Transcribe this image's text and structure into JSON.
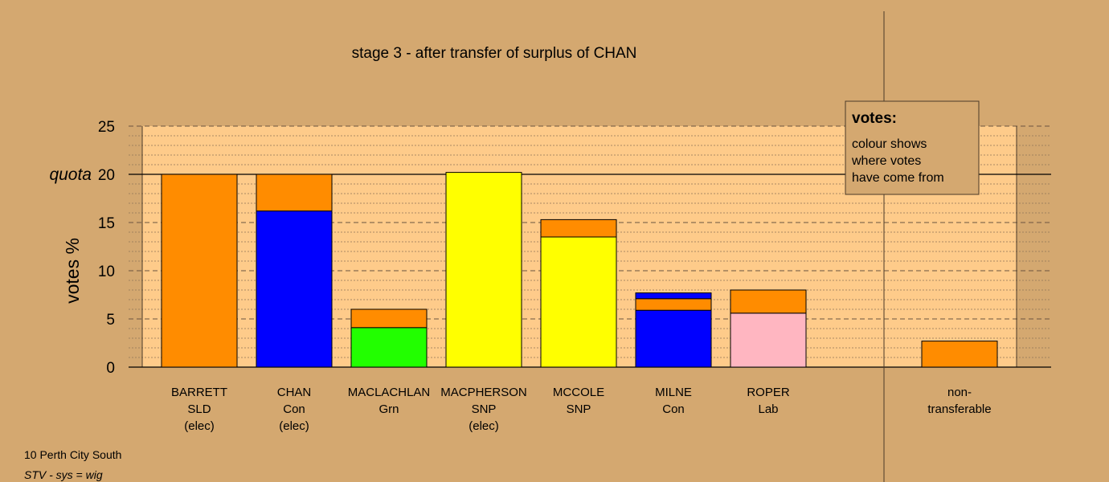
{
  "chart_data": {
    "type": "bar",
    "stacked": true,
    "title": "stage 3 - after transfer of surplus of CHAN",
    "ylabel": "votes %",
    "ylim": [
      0,
      25
    ],
    "yticks": [
      0,
      5,
      10,
      15,
      20,
      25
    ],
    "quota": 20,
    "quota_label": "quota",
    "grid": "dashed horizontal lines every 1%",
    "categories": [
      {
        "name": "BARRETT",
        "party": "SLD",
        "status": "(elec)"
      },
      {
        "name": "CHAN",
        "party": "Con",
        "status": "(elec)"
      },
      {
        "name": "MACLACHLAN",
        "party": "Grn",
        "status": ""
      },
      {
        "name": "MACPHERSON",
        "party": "SNP",
        "status": "(elec)"
      },
      {
        "name": "MCCOLE",
        "party": "SNP",
        "status": ""
      },
      {
        "name": "MILNE",
        "party": "Con",
        "status": ""
      },
      {
        "name": "ROPER",
        "party": "Lab",
        "status": ""
      }
    ],
    "segments": [
      [
        {
          "color": "#ff8c00",
          "value": 20.0
        }
      ],
      [
        {
          "color": "#0000ff",
          "value": 16.2
        },
        {
          "color": "#ff8c00",
          "value": 3.8
        }
      ],
      [
        {
          "color": "#22ff00",
          "value": 4.1
        },
        {
          "color": "#ff8c00",
          "value": 1.9
        }
      ],
      [
        {
          "color": "#ffff00",
          "value": 20.2
        }
      ],
      [
        {
          "color": "#ffff00",
          "value": 13.5
        },
        {
          "color": "#ff8c00",
          "value": 1.8
        }
      ],
      [
        {
          "color": "#0000ff",
          "value": 5.9
        },
        {
          "color": "#ff8c00",
          "value": 1.2
        },
        {
          "color": "#0000ff",
          "value": 0.6
        }
      ],
      [
        {
          "color": "#ffb6c1",
          "value": 5.6
        },
        {
          "color": "#ff8c00",
          "value": 2.4
        }
      ]
    ],
    "nontransferable": {
      "label_line1": "non-",
      "label_line2": "transferable",
      "segments": [
        {
          "color": "#ff8c00",
          "value": 2.7
        }
      ]
    },
    "legend": {
      "title": "votes:",
      "lines": [
        "colour shows",
        "where votes",
        "have come from"
      ],
      "placement": "top-right"
    }
  },
  "footer": {
    "constituency": "10 Perth City South",
    "system": "STV - sys = wig"
  },
  "colors": {
    "background": "#d4a870",
    "plot_area": "#fecb8a"
  }
}
